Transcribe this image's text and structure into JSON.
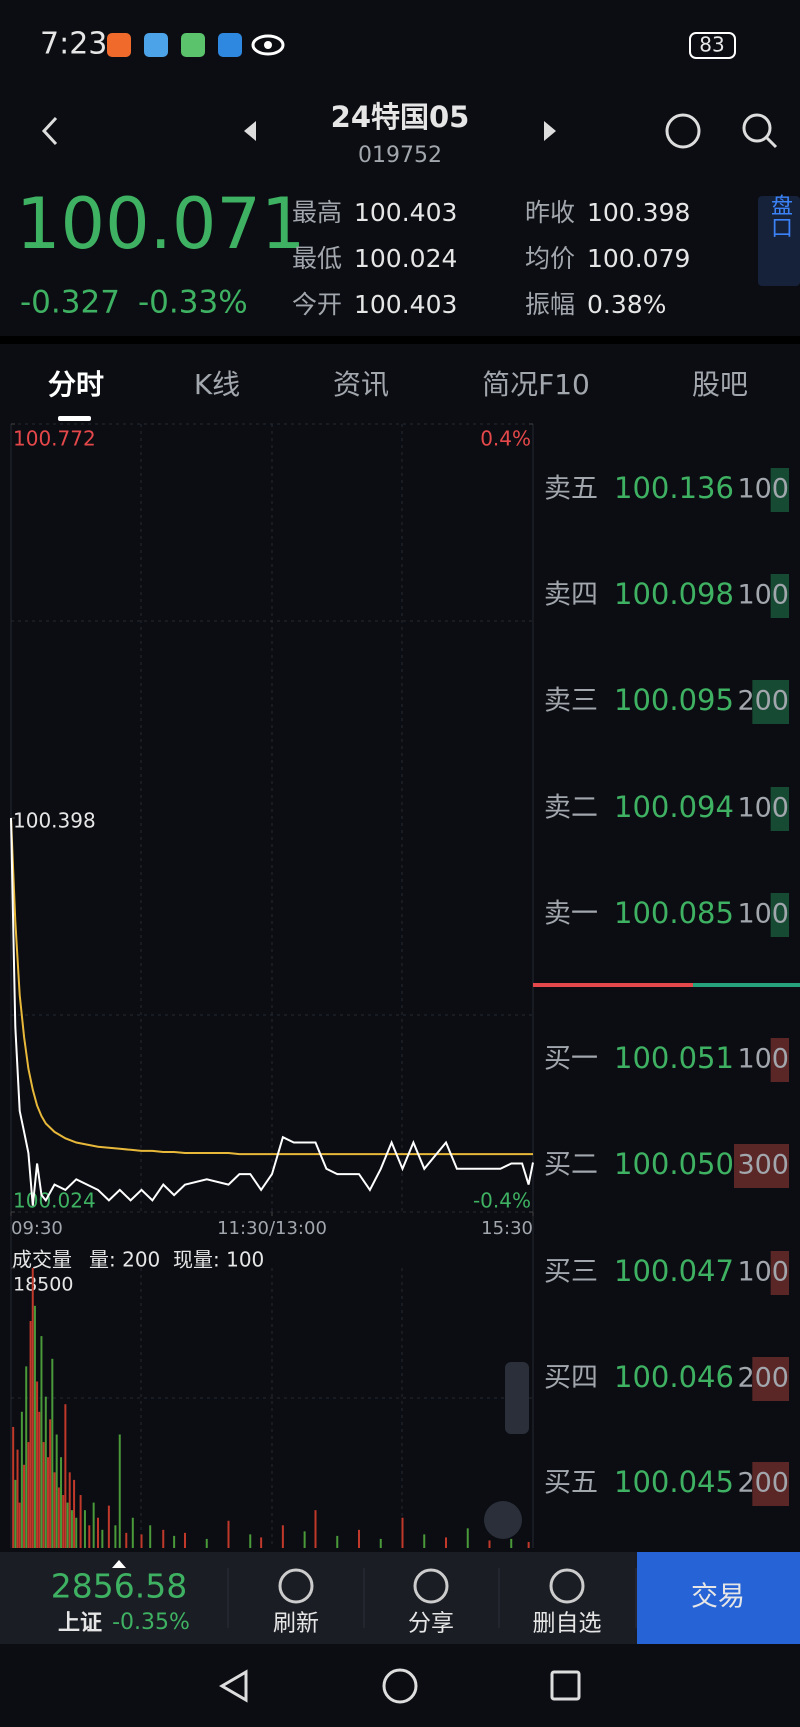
{
  "status_bar": {
    "time": "7:23",
    "battery": "83"
  },
  "header": {
    "title": "24特国05",
    "code": "019752"
  },
  "quote": {
    "price": "100.071",
    "change": "-0.327",
    "change_pct": "-0.33%",
    "stats": [
      {
        "label": "最高",
        "value": "100.403"
      },
      {
        "label": "昨收",
        "value": "100.398"
      },
      {
        "label": "最低",
        "value": "100.024"
      },
      {
        "label": "均价",
        "value": "100.079"
      },
      {
        "label": "今开",
        "value": "100.403"
      },
      {
        "label": "振幅",
        "value": "0.38%"
      }
    ],
    "side_tab": "盘口"
  },
  "tabs": [
    "分时",
    "K线",
    "资讯",
    "简况F10",
    "股吧"
  ],
  "chart_data": [
    {
      "type": "line",
      "ylim": [
        100.024,
        100.772
      ],
      "yticks": [
        100.772,
        100.398,
        100.024
      ],
      "y2lim": [
        -0.4,
        0.4
      ],
      "y2ticks": [
        {
          "value": 0.4,
          "label": "0.4%"
        },
        {
          "value": -0.4,
          "label": "-0.4%"
        }
      ],
      "xlim": [
        0,
        240
      ],
      "xticks": [
        {
          "value": 0,
          "label": "09:30"
        },
        {
          "value": 120,
          "label": "11:30/13:00"
        },
        {
          "value": 240,
          "label": "15:30"
        }
      ],
      "x": [
        0,
        2,
        4,
        6,
        8,
        10,
        12,
        14,
        16,
        20,
        25,
        30,
        35,
        40,
        45,
        50,
        55,
        60,
        65,
        70,
        75,
        80,
        90,
        100,
        105,
        110,
        115,
        120,
        125,
        130,
        140,
        145,
        150,
        160,
        165,
        170,
        175,
        180,
        185,
        190,
        200,
        205,
        215,
        225,
        230,
        235,
        238,
        240
      ],
      "series": [
        {
          "color": "#ffffff",
          "values": [
            100.398,
            100.2,
            100.12,
            100.1,
            100.08,
            100.03,
            100.07,
            100.04,
            100.035,
            100.05,
            100.045,
            100.055,
            100.05,
            100.045,
            100.035,
            100.045,
            100.035,
            100.045,
            100.035,
            100.05,
            100.04,
            100.05,
            100.055,
            100.05,
            100.06,
            100.06,
            100.045,
            100.06,
            100.095,
            100.09,
            100.09,
            100.065,
            100.06,
            100.06,
            100.045,
            100.065,
            100.09,
            100.065,
            100.09,
            100.065,
            100.09,
            100.065,
            100.065,
            100.065,
            100.07,
            100.07,
            100.05,
            100.071
          ]
        },
        {
          "color": "#e8b83a",
          "values": [
            100.398,
            100.3,
            100.23,
            100.19,
            100.16,
            100.14,
            100.125,
            100.115,
            100.108,
            100.1,
            100.094,
            100.09,
            100.088,
            100.086,
            100.085,
            100.084,
            100.083,
            100.082,
            100.082,
            100.081,
            100.081,
            100.08,
            100.08,
            100.08,
            100.079,
            100.079,
            100.079,
            100.079,
            100.079,
            100.079,
            100.079,
            100.079,
            100.079,
            100.079,
            100.079,
            100.079,
            100.079,
            100.079,
            100.079,
            100.079,
            100.079,
            100.079,
            100.079,
            100.079,
            100.079,
            100.079,
            100.079,
            100.079
          ]
        }
      ]
    },
    {
      "type": "bar",
      "title": "成交量",
      "annotations": [
        "量: 200",
        "现量: 100"
      ],
      "ylim": [
        0,
        18500
      ],
      "yticks": [
        18500
      ],
      "xlim": [
        0,
        240
      ],
      "x": [
        1,
        2,
        3,
        4,
        5,
        6,
        7,
        8,
        9,
        10,
        11,
        12,
        13,
        14,
        15,
        16,
        17,
        18,
        19,
        20,
        21,
        22,
        23,
        24,
        25,
        26,
        27,
        28,
        29,
        30,
        32,
        34,
        36,
        38,
        40,
        42,
        45,
        48,
        50,
        53,
        56,
        60,
        64,
        70,
        75,
        80,
        90,
        100,
        110,
        115,
        125,
        135,
        140,
        150,
        160,
        170,
        180,
        190,
        200,
        210,
        220,
        230,
        238
      ],
      "values": [
        8000,
        4500,
        6500,
        3000,
        9000,
        5500,
        12000,
        7000,
        15000,
        18500,
        16000,
        11000,
        9000,
        14000,
        7000,
        10000,
        6000,
        8500,
        12500,
        5000,
        7500,
        4000,
        6000,
        3500,
        9500,
        3000,
        5000,
        2500,
        4500,
        2000,
        3500,
        2500,
        1500,
        3000,
        2000,
        1200,
        2800,
        1500,
        7500,
        1000,
        2000,
        900,
        1500,
        1200,
        800,
        1000,
        600,
        1800,
        900,
        700,
        1500,
        1100,
        2500,
        800,
        1200,
        600,
        2000,
        900,
        700,
        1300,
        500,
        600,
        400
      ],
      "colors": [
        "#c0392b",
        "#4a9a3a",
        "#c0392b",
        "#c0392b",
        "#4a9a3a",
        "#c0392b",
        "#4a9a3a",
        "#c0392b",
        "#c0392b",
        "#c0392b",
        "#4a9a3a",
        "#c0392b",
        "#c0392b",
        "#4a9a3a",
        "#c0392b",
        "#4a9a3a",
        "#c0392b",
        "#c0392b",
        "#4a9a3a",
        "#c0392b",
        "#4a9a3a",
        "#c0392b",
        "#4a9a3a",
        "#c0392b",
        "#c0392b",
        "#4a9a3a",
        "#c0392b",
        "#4a9a3a",
        "#c0392b",
        "#4a9a3a",
        "#c0392b",
        "#4a9a3a",
        "#c0392b",
        "#4a9a3a",
        "#c0392b",
        "#4a9a3a",
        "#c0392b",
        "#4a9a3a",
        "#4a9a3a",
        "#c0392b",
        "#4a9a3a",
        "#c0392b",
        "#4a9a3a",
        "#c0392b",
        "#4a9a3a",
        "#c0392b",
        "#4a9a3a",
        "#c0392b",
        "#4a9a3a",
        "#c0392b",
        "#c0392b",
        "#4a9a3a",
        "#c0392b",
        "#4a9a3a",
        "#c0392b",
        "#4a9a3a",
        "#c0392b",
        "#4a9a3a",
        "#c0392b",
        "#4a9a3a",
        "#c0392b",
        "#4a9a3a",
        "#c0392b"
      ]
    }
  ],
  "order_book": {
    "sell": [
      {
        "label": "卖五",
        "price": "100.136",
        "qty": 100
      },
      {
        "label": "卖四",
        "price": "100.098",
        "qty": 100
      },
      {
        "label": "卖三",
        "price": "100.095",
        "qty": 200
      },
      {
        "label": "卖二",
        "price": "100.094",
        "qty": 100
      },
      {
        "label": "卖一",
        "price": "100.085",
        "qty": 100
      }
    ],
    "buy": [
      {
        "label": "买一",
        "price": "100.051",
        "qty": 100
      },
      {
        "label": "买二",
        "price": "100.050",
        "qty": 300
      },
      {
        "label": "买三",
        "price": "100.047",
        "qty": 100
      },
      {
        "label": "买四",
        "price": "100.046",
        "qty": 200
      },
      {
        "label": "买五",
        "price": "100.045",
        "qty": 200
      }
    ]
  },
  "bottom_bar": {
    "index_value": "2856.58",
    "index_name": "上证",
    "index_change": "-0.35%",
    "buttons": [
      "刷新",
      "分享",
      "删自选"
    ],
    "trade": "交易"
  }
}
